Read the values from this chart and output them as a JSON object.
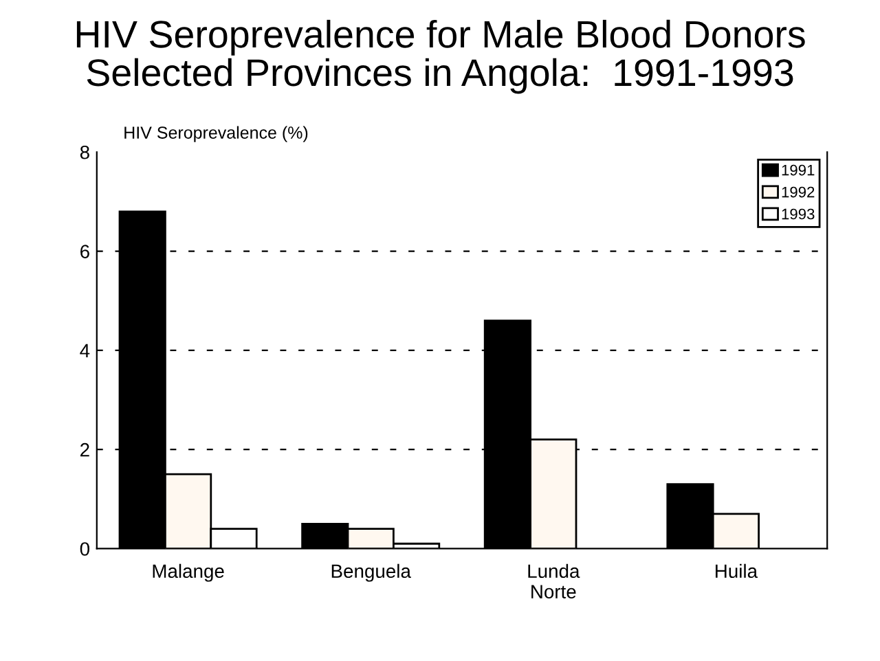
{
  "chart_data": {
    "type": "bar",
    "title": "HIV Seroprevalence for Male Blood Donors\nSelected Provinces in Angola:  1991-1993",
    "ylabel": "HIV Seroprevalence (%)",
    "categories": [
      "Malange",
      "Benguela",
      "Lunda\nNorte",
      "Huila"
    ],
    "series": [
      {
        "name": "1991",
        "color": "#000000",
        "values": [
          6.8,
          0.5,
          4.6,
          1.3
        ]
      },
      {
        "name": "1992",
        "color": "#fff8f0",
        "values": [
          1.5,
          0.4,
          2.2,
          0.7
        ]
      },
      {
        "name": "1993",
        "color": "#ffffff",
        "values": [
          0.4,
          0.1,
          null,
          null
        ]
      }
    ],
    "ylim": [
      0,
      8
    ],
    "yticks": [
      0,
      2,
      4,
      6,
      8
    ],
    "grid": "y",
    "legend": "top right"
  }
}
